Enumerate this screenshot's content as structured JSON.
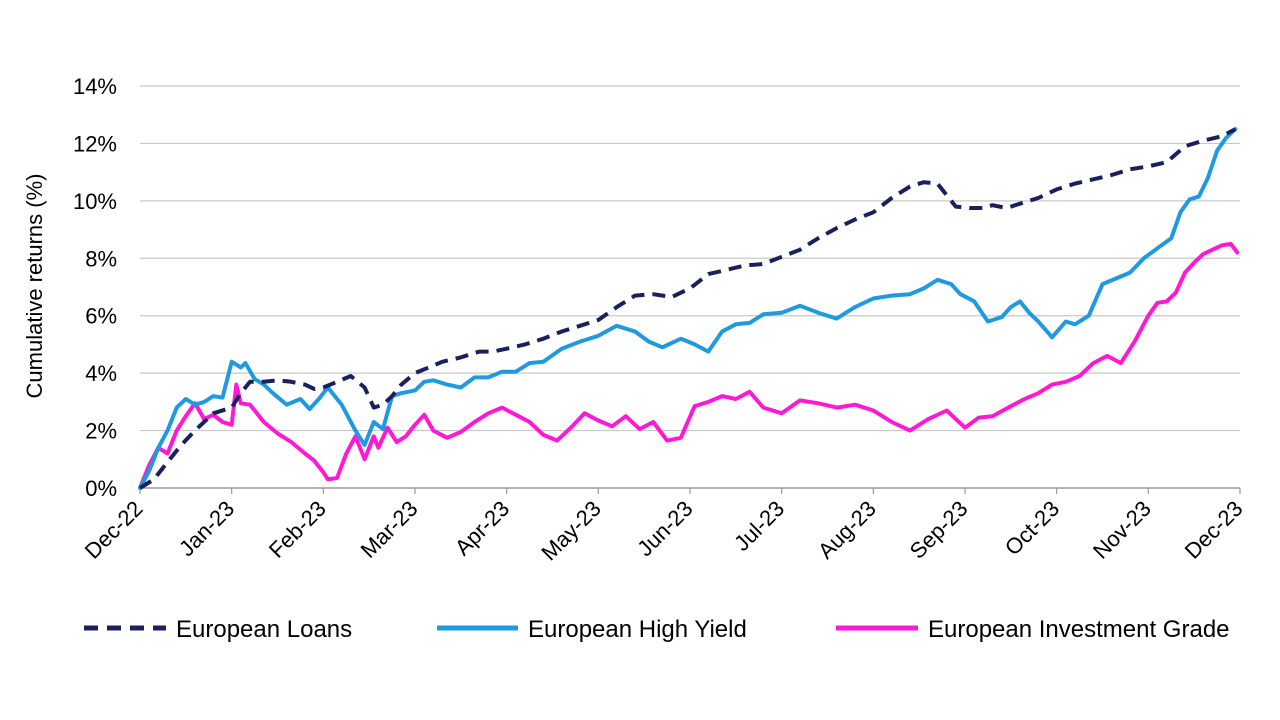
{
  "chart_data": {
    "type": "line",
    "title": "",
    "xlabel": "",
    "ylabel": "Cumulative returns (%)",
    "ylim": [
      0,
      14
    ],
    "yticks": [
      0,
      2,
      4,
      6,
      8,
      10,
      12,
      14
    ],
    "ytick_labels": [
      "0%",
      "2%",
      "4%",
      "6%",
      "8%",
      "10%",
      "12%",
      "14%"
    ],
    "xlim": [
      0,
      12
    ],
    "xtick_labels": [
      "Dec-22",
      "Jan-23",
      "Feb-23",
      "Mar-23",
      "Apr-23",
      "May-23",
      "Jun-23",
      "Jul-23",
      "Aug-23",
      "Sep-23",
      "Oct-23",
      "Nov-23",
      "Dec-23"
    ],
    "grid": "horizontal",
    "legend_position": "bottom",
    "series": [
      {
        "name": "European Loans",
        "color": "#1a1f5e",
        "style": "dashed",
        "x": [
          0,
          0.15,
          0.3,
          0.45,
          0.6,
          0.8,
          1.0,
          1.1,
          1.2,
          1.35,
          1.5,
          1.65,
          1.8,
          1.9,
          2.0,
          2.15,
          2.3,
          2.45,
          2.55,
          2.65,
          2.75,
          2.85,
          3.0,
          3.15,
          3.3,
          3.5,
          3.7,
          3.85,
          4.0,
          4.2,
          4.4,
          4.6,
          4.8,
          5.0,
          5.2,
          5.4,
          5.6,
          5.8,
          6.0,
          6.2,
          6.4,
          6.6,
          6.8,
          7.0,
          7.2,
          7.4,
          7.6,
          7.8,
          8.0,
          8.2,
          8.4,
          8.55,
          8.7,
          8.9,
          9.05,
          9.2,
          9.3,
          9.45,
          9.6,
          9.8,
          10.0,
          10.2,
          10.4,
          10.6,
          10.8,
          11.0,
          11.2,
          11.4,
          11.6,
          11.8,
          11.95
        ],
        "values": [
          0,
          0.3,
          0.9,
          1.5,
          2.0,
          2.6,
          2.8,
          3.3,
          3.7,
          3.7,
          3.75,
          3.7,
          3.6,
          3.45,
          3.5,
          3.7,
          3.9,
          3.5,
          2.8,
          2.9,
          3.2,
          3.6,
          4.0,
          4.2,
          4.4,
          4.55,
          4.75,
          4.75,
          4.85,
          5.0,
          5.2,
          5.45,
          5.65,
          5.85,
          6.3,
          6.7,
          6.75,
          6.65,
          6.95,
          7.45,
          7.6,
          7.75,
          7.8,
          8.05,
          8.3,
          8.7,
          9.05,
          9.35,
          9.6,
          10.1,
          10.5,
          10.65,
          10.6,
          9.8,
          9.75,
          9.75,
          9.85,
          9.75,
          9.9,
          10.1,
          10.4,
          10.6,
          10.75,
          10.9,
          11.1,
          11.2,
          11.35,
          11.9,
          12.1,
          12.25,
          12.5
        ]
      },
      {
        "name": "European High Yield",
        "color": "#1f9ae0",
        "style": "solid",
        "x": [
          0,
          0.1,
          0.2,
          0.3,
          0.4,
          0.5,
          0.6,
          0.7,
          0.8,
          0.9,
          1.0,
          1.1,
          1.15,
          1.25,
          1.35,
          1.45,
          1.6,
          1.75,
          1.85,
          1.95,
          2.05,
          2.2,
          2.35,
          2.45,
          2.55,
          2.65,
          2.75,
          2.85,
          3.0,
          3.1,
          3.2,
          3.35,
          3.5,
          3.65,
          3.8,
          3.95,
          4.1,
          4.25,
          4.4,
          4.6,
          4.8,
          5.0,
          5.2,
          5.4,
          5.55,
          5.7,
          5.9,
          6.05,
          6.2,
          6.35,
          6.5,
          6.65,
          6.8,
          7.0,
          7.2,
          7.4,
          7.6,
          7.8,
          8.0,
          8.2,
          8.4,
          8.55,
          8.7,
          8.85,
          8.95,
          9.1,
          9.25,
          9.4,
          9.5,
          9.6,
          9.7,
          9.8,
          9.95,
          10.1,
          10.2,
          10.35,
          10.5,
          10.65,
          10.8,
          10.95,
          11.1,
          11.25,
          11.35,
          11.45,
          11.55,
          11.65,
          11.75,
          11.85,
          11.95
        ],
        "values": [
          0,
          0.6,
          1.4,
          2.0,
          2.8,
          3.1,
          2.9,
          3.0,
          3.2,
          3.15,
          4.4,
          4.2,
          4.35,
          3.8,
          3.6,
          3.3,
          2.9,
          3.1,
          2.75,
          3.1,
          3.5,
          2.9,
          2.0,
          1.5,
          2.3,
          2.05,
          3.2,
          3.3,
          3.4,
          3.7,
          3.75,
          3.6,
          3.5,
          3.85,
          3.85,
          4.05,
          4.05,
          4.35,
          4.4,
          4.85,
          5.1,
          5.3,
          5.65,
          5.45,
          5.1,
          4.9,
          5.2,
          5.0,
          4.75,
          5.45,
          5.7,
          5.75,
          6.05,
          6.1,
          6.35,
          6.1,
          5.9,
          6.3,
          6.6,
          6.7,
          6.75,
          6.95,
          7.25,
          7.1,
          6.75,
          6.5,
          5.8,
          5.95,
          6.3,
          6.5,
          6.1,
          5.8,
          5.25,
          5.8,
          5.7,
          6.0,
          7.1,
          7.3,
          7.5,
          8.0,
          8.35,
          8.7,
          9.6,
          10.05,
          10.15,
          10.8,
          11.75,
          12.2,
          12.5
        ]
      },
      {
        "name": "European Investment Grade",
        "color": "#ff19d5",
        "style": "solid",
        "x": [
          0,
          0.1,
          0.2,
          0.3,
          0.4,
          0.5,
          0.6,
          0.7,
          0.8,
          0.9,
          1.0,
          1.05,
          1.1,
          1.2,
          1.35,
          1.5,
          1.65,
          1.8,
          1.9,
          2.0,
          2.05,
          2.15,
          2.25,
          2.35,
          2.45,
          2.55,
          2.6,
          2.7,
          2.8,
          2.9,
          3.0,
          3.1,
          3.2,
          3.35,
          3.5,
          3.65,
          3.8,
          3.95,
          4.1,
          4.25,
          4.4,
          4.55,
          4.7,
          4.85,
          5.0,
          5.15,
          5.3,
          5.45,
          5.6,
          5.75,
          5.9,
          6.05,
          6.2,
          6.35,
          6.5,
          6.65,
          6.8,
          7.0,
          7.2,
          7.4,
          7.6,
          7.8,
          8.0,
          8.2,
          8.4,
          8.6,
          8.8,
          9.0,
          9.15,
          9.3,
          9.5,
          9.65,
          9.8,
          9.95,
          10.1,
          10.25,
          10.4,
          10.55,
          10.7,
          10.85,
          11.0,
          11.1,
          11.2,
          11.3,
          11.4,
          11.5,
          11.6,
          11.7,
          11.8,
          11.9,
          11.97
        ],
        "values": [
          0,
          0.8,
          1.4,
          1.2,
          2.0,
          2.5,
          2.95,
          2.4,
          2.55,
          2.3,
          2.2,
          3.6,
          2.95,
          2.9,
          2.3,
          1.9,
          1.6,
          1.2,
          0.95,
          0.55,
          0.3,
          0.35,
          1.2,
          1.8,
          1.0,
          1.8,
          1.4,
          2.1,
          1.6,
          1.8,
          2.2,
          2.55,
          2.0,
          1.75,
          1.95,
          2.3,
          2.6,
          2.8,
          2.55,
          2.3,
          1.85,
          1.65,
          2.1,
          2.6,
          2.35,
          2.15,
          2.5,
          2.05,
          2.3,
          1.65,
          1.75,
          2.85,
          3.0,
          3.2,
          3.1,
          3.35,
          2.8,
          2.6,
          3.05,
          2.95,
          2.8,
          2.9,
          2.7,
          2.3,
          2.0,
          2.4,
          2.7,
          2.1,
          2.45,
          2.5,
          2.85,
          3.1,
          3.3,
          3.6,
          3.7,
          3.9,
          4.35,
          4.6,
          4.35,
          5.1,
          6.0,
          6.45,
          6.5,
          6.8,
          7.5,
          7.85,
          8.15,
          8.3,
          8.45,
          8.5,
          8.2
        ]
      }
    ]
  }
}
